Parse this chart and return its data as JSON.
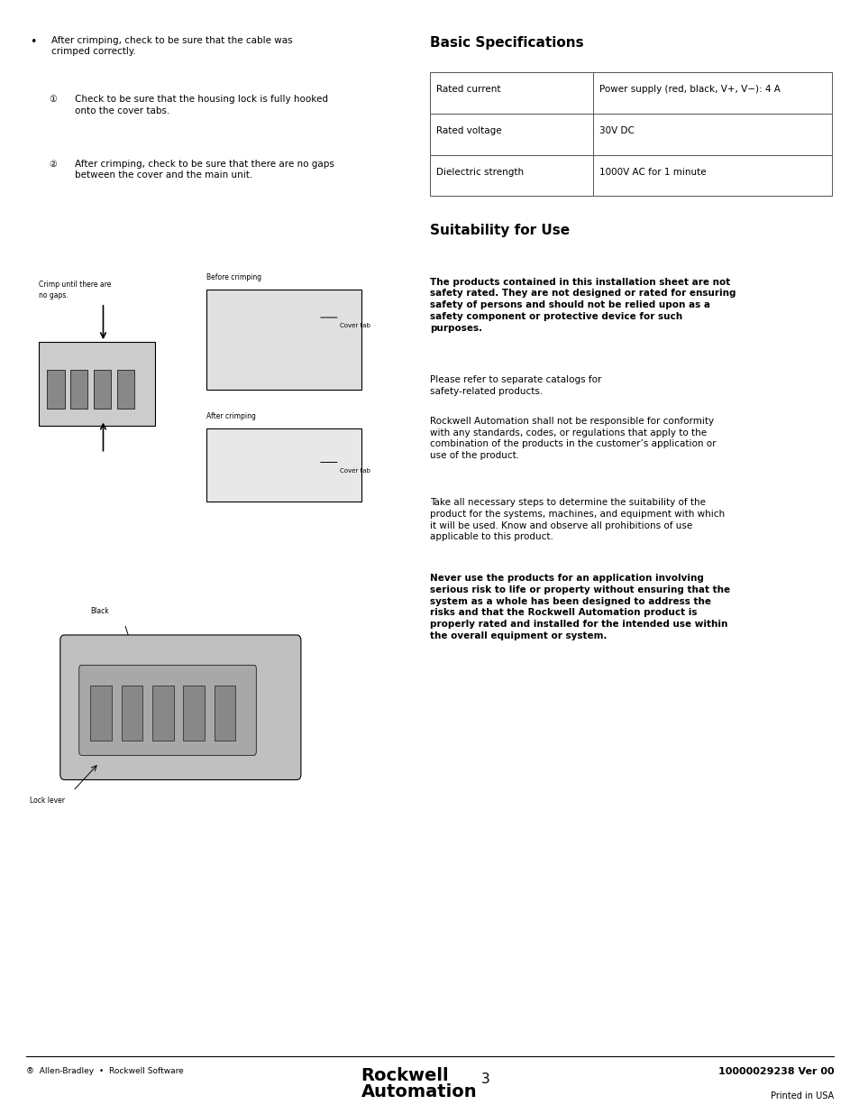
{
  "background_color": "#ffffff",
  "page_width": 9.54,
  "page_height": 12.35,
  "left_column": {
    "bullet_main": "After crimping, check to be sure that the cable was\ncrimped correctly.",
    "sub1_circle": "①",
    "sub1_text": "Check to be sure that the housing lock is fully hooked\nonto the cover tabs.",
    "sub2_circle": "②",
    "sub2_text": "After crimping, check to be sure that there are no gaps\nbetween the cover and the main unit."
  },
  "right_column": {
    "basic_specs_title": "Basic Specifications",
    "table_rows": [
      [
        "Rated current",
        "Power supply (red, black, V+, V−): 4 A"
      ],
      [
        "Rated voltage",
        "30V DC"
      ],
      [
        "Dielectric strength",
        "1000V AC for 1 minute"
      ]
    ],
    "suitability_title": "Suitability for Use",
    "para1_bold": "The products contained in this installation sheet are not\nsafety rated. They are not designed or rated for ensuring\nsafety of persons and should not be relied upon as a\nsafety component or protective device for such\npurposes.",
    "para1_normal": "Please refer to separate catalogs for\nsafety-related products.",
    "para2": "Rockwell Automation shall not be responsible for conformity\nwith any standards, codes, or regulations that apply to the\ncombination of the products in the customer’s application or\nuse of the product.",
    "para3": "Take all necessary steps to determine the suitability of the\nproduct for the systems, machines, and equipment with which\nit will be used. Know and observe all prohibitions of use\napplicable to this product.",
    "para4_bold": "Never use the products for an application involving\nserious risk to life or property without ensuring that the\nsystem as a whole has been designed to address the\nrisks and that the Rockwell Automation product is\nproperly rated and installed for the intended use within\nthe overall equipment or system."
  },
  "footer": {
    "left_logo_text": "®  Allen-Bradley  •  Rockwell Software",
    "center_brand": "Rockwell\nAutomation",
    "page_number": "3",
    "right_doc_number": "10000029238 Ver 00",
    "right_printed": "Printed in USA"
  }
}
